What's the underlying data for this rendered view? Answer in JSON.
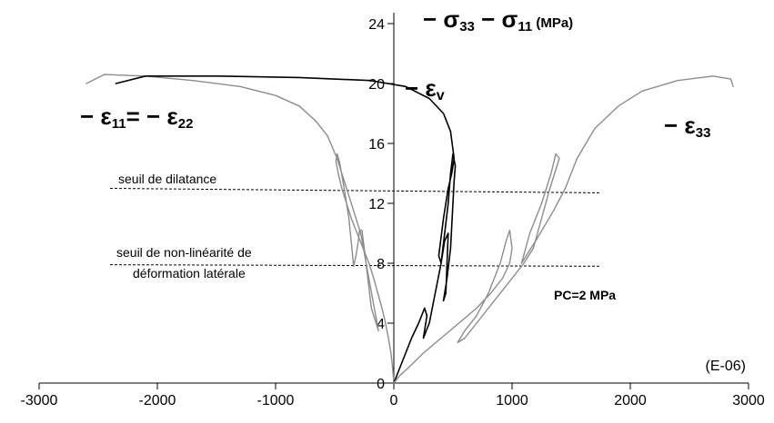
{
  "chart_data": {
    "type": "line",
    "xlim": [
      -3000,
      3000
    ],
    "ylim": [
      0,
      24
    ],
    "x_ticks": [
      -3000,
      -2000,
      -1000,
      0,
      1000,
      2000,
      3000
    ],
    "y_ticks": [
      0,
      4,
      8,
      12,
      16,
      20,
      24
    ],
    "grid": false,
    "x_unit_label": "(E-06)",
    "y_axis_label": {
      "prefix": "− σ",
      "sub1": "33",
      "mid": " − σ",
      "sub2": "11",
      "unit": " (MPa)"
    },
    "annotations": {
      "eps_lateral": {
        "prefix": "− ε",
        "sub1": "11",
        "mid": "= − ε",
        "sub2": "22"
      },
      "eps_v": {
        "prefix": "− ε",
        "sub": "v"
      },
      "eps_axial": {
        "prefix": "− ε",
        "sub": "33"
      },
      "dilatancy_label": "seuil de dilatance",
      "nonlinearity_label_line1": "seuil de non-linéarité de",
      "nonlinearity_label_line2": "déformation latérale",
      "pc_label": "PC=2 MPa"
    },
    "thresholds": [
      {
        "name": "seuil de dilatance",
        "y_start": 13.0,
        "y_end": 12.7,
        "x_range": [
          -2400,
          1750
        ]
      },
      {
        "name": "seuil de non-linéarité",
        "y_start": 7.9,
        "y_end": 7.8,
        "x_range": [
          -2400,
          1750
        ]
      }
    ],
    "series": [
      {
        "id": "lateral",
        "color": "#8c8c8c",
        "points": [
          [
            0,
            0
          ],
          [
            -10,
            1
          ],
          [
            -25,
            2
          ],
          [
            -45,
            3
          ],
          [
            -70,
            4
          ],
          [
            -100,
            5
          ],
          [
            -135,
            6
          ],
          [
            -170,
            7
          ],
          [
            -210,
            8
          ],
          [
            -260,
            9
          ],
          [
            -310,
            10
          ],
          [
            -360,
            11
          ],
          [
            -400,
            12
          ],
          [
            -440,
            13
          ],
          [
            -470,
            14
          ],
          [
            -490,
            14.8
          ],
          [
            -480,
            15.3
          ],
          [
            -460,
            14.8
          ],
          [
            -420,
            13
          ],
          [
            -380,
            11
          ],
          [
            -355,
            9
          ],
          [
            -340,
            7.8
          ],
          [
            -320,
            8.5
          ],
          [
            -300,
            9.5
          ],
          [
            -290,
            10.2
          ],
          [
            -270,
            10.2
          ],
          [
            -250,
            9
          ],
          [
            -220,
            7
          ],
          [
            -190,
            5
          ],
          [
            -150,
            4
          ],
          [
            -130,
            3.5
          ],
          [
            -200,
            6.5
          ],
          [
            -280,
            10
          ],
          [
            -380,
            12.5
          ],
          [
            -480,
            15
          ],
          [
            -560,
            16.5
          ],
          [
            -660,
            17.5
          ],
          [
            -800,
            18.5
          ],
          [
            -1000,
            19.2
          ],
          [
            -1300,
            19.8
          ],
          [
            -1700,
            20.2
          ],
          [
            -2100,
            20.5
          ],
          [
            -2450,
            20.6
          ],
          [
            -2600,
            20
          ]
        ]
      },
      {
        "id": "volumetric",
        "color": "#000000",
        "points": [
          [
            0,
            0
          ],
          [
            50,
            1
          ],
          [
            100,
            2
          ],
          [
            150,
            3
          ],
          [
            210,
            4
          ],
          [
            260,
            5
          ],
          [
            280,
            4.5
          ],
          [
            250,
            3
          ],
          [
            300,
            4
          ],
          [
            350,
            6
          ],
          [
            400,
            8
          ],
          [
            430,
            9.5
          ],
          [
            460,
            10
          ],
          [
            450,
            8
          ],
          [
            440,
            6
          ],
          [
            420,
            5.5
          ],
          [
            450,
            7
          ],
          [
            480,
            9
          ],
          [
            500,
            12
          ],
          [
            510,
            13.5
          ],
          [
            520,
            14.5
          ],
          [
            500,
            15.3
          ],
          [
            480,
            14
          ],
          [
            460,
            12
          ],
          [
            430,
            10
          ],
          [
            400,
            8
          ],
          [
            380,
            8.5
          ],
          [
            420,
            11
          ],
          [
            460,
            13
          ],
          [
            490,
            14
          ],
          [
            510,
            15
          ],
          [
            480,
            16.8
          ],
          [
            420,
            18
          ],
          [
            300,
            19
          ],
          [
            100,
            19.8
          ],
          [
            -200,
            20.2
          ],
          [
            -800,
            20.4
          ],
          [
            -1500,
            20.5
          ],
          [
            -2100,
            20.5
          ],
          [
            -2350,
            20
          ]
        ]
      },
      {
        "id": "axial",
        "color": "#8c8c8c",
        "points": [
          [
            0,
            0
          ],
          [
            50,
            0.5
          ],
          [
            120,
            1
          ],
          [
            250,
            2
          ],
          [
            400,
            3
          ],
          [
            550,
            4
          ],
          [
            700,
            5
          ],
          [
            820,
            6
          ],
          [
            920,
            7
          ],
          [
            980,
            8
          ],
          [
            1000,
            9
          ],
          [
            980,
            10.2
          ],
          [
            950,
            9.5
          ],
          [
            900,
            8
          ],
          [
            800,
            6
          ],
          [
            700,
            4.5
          ],
          [
            600,
            3.5
          ],
          [
            540,
            2.7
          ],
          [
            600,
            3
          ],
          [
            700,
            4
          ],
          [
            800,
            5
          ],
          [
            950,
            6.5
          ],
          [
            1100,
            8
          ],
          [
            1180,
            9
          ],
          [
            1250,
            11
          ],
          [
            1320,
            13
          ],
          [
            1400,
            15
          ],
          [
            1370,
            15.3
          ],
          [
            1330,
            14
          ],
          [
            1250,
            12
          ],
          [
            1150,
            10
          ],
          [
            1080,
            8
          ],
          [
            1200,
            9.5
          ],
          [
            1350,
            11.5
          ],
          [
            1450,
            13
          ],
          [
            1550,
            15
          ],
          [
            1700,
            17
          ],
          [
            1900,
            18.5
          ],
          [
            2100,
            19.5
          ],
          [
            2400,
            20.2
          ],
          [
            2700,
            20.5
          ],
          [
            2850,
            20.3
          ],
          [
            2870,
            19.8
          ]
        ]
      }
    ]
  }
}
